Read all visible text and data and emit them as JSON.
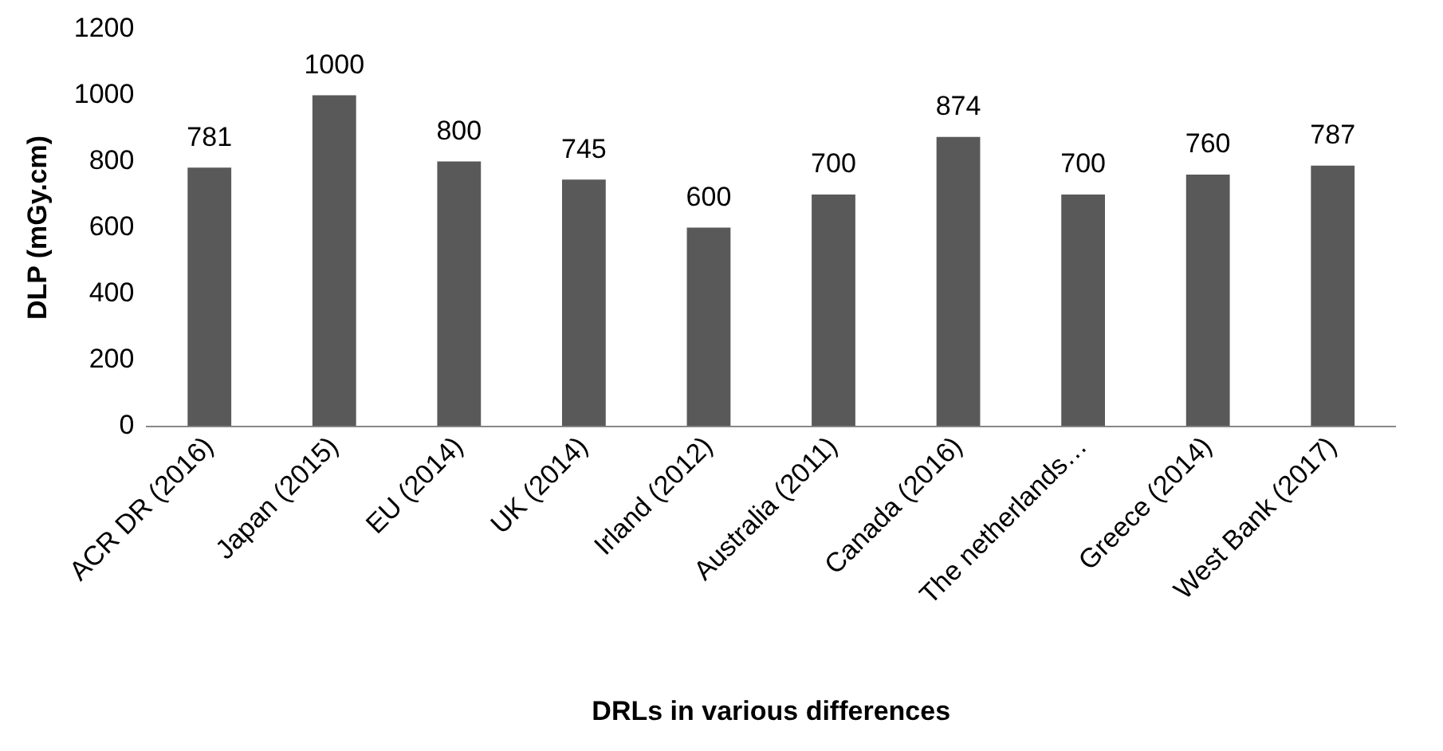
{
  "chart_data": {
    "type": "bar",
    "xlabel": "DRLs in various differences",
    "ylabel": "DLP (mGy.cm)",
    "categories": [
      "ACR DR (2016)",
      "Japan (2015)",
      "EU (2014)",
      "UK (2014)",
      "Irland (2012)",
      "Australia (2011)",
      "Canada (2016)",
      "The netherlands…",
      "Greece (2014)",
      "West Bank (2017)"
    ],
    "values": [
      781,
      1000,
      800,
      745,
      600,
      700,
      874,
      700,
      760,
      787
    ],
    "color": "#595959",
    "ylim": [
      0,
      1200
    ],
    "yticks": [
      0,
      200,
      400,
      600,
      800,
      1000,
      1200
    ],
    "grid": false,
    "legend": false,
    "data_labels": true
  }
}
